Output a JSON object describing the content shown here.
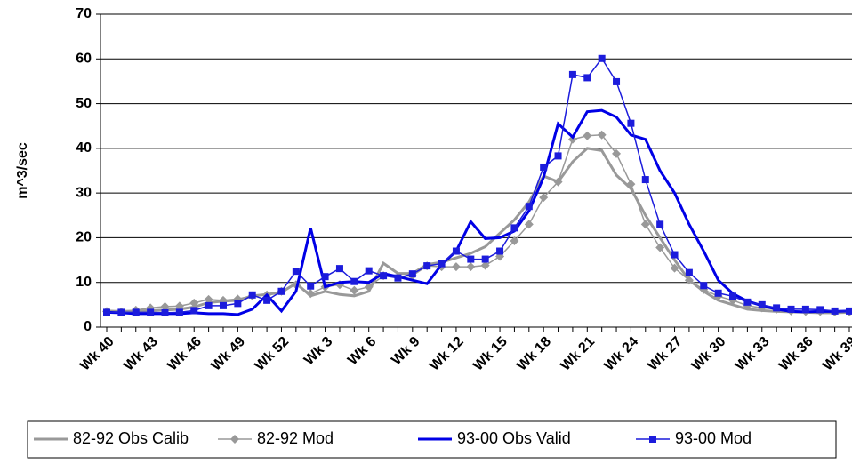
{
  "chart_data": {
    "type": "line",
    "ylabel": "m^3/sec",
    "categories": [
      "Wk 40",
      null,
      null,
      "Wk 43",
      null,
      null,
      "Wk 46",
      null,
      null,
      "Wk 49",
      null,
      null,
      "Wk 52",
      null,
      null,
      "Wk 3",
      null,
      null,
      "Wk 6",
      null,
      null,
      "Wk 9",
      null,
      null,
      "Wk 12",
      null,
      null,
      "Wk 15",
      null,
      null,
      "Wk 18",
      null,
      null,
      "Wk 21",
      null,
      null,
      "Wk 24",
      null,
      null,
      "Wk 27",
      null,
      null,
      "Wk 30",
      null,
      null,
      "Wk 33",
      null,
      null,
      "Wk 36",
      null,
      null,
      "Wk 39"
    ],
    "ylim": [
      0,
      70
    ],
    "yticks": [
      0,
      10,
      20,
      30,
      40,
      50,
      60,
      70
    ],
    "grid": true,
    "series": [
      {
        "name": "82-92 Obs Calib",
        "color": "#999999",
        "marker": "none",
        "values": [
          3.6,
          3.5,
          3.6,
          3.7,
          3.8,
          4.0,
          4.5,
          5.5,
          5.8,
          6.0,
          7.0,
          7.3,
          7.8,
          9.8,
          7.0,
          8.0,
          7.3,
          7.0,
          8.0,
          14.3,
          12.0,
          12.0,
          14.0,
          14.5,
          15.5,
          16.5,
          18.0,
          21.0,
          24.0,
          28.0,
          33.8,
          32.5,
          37.0,
          40.0,
          39.5,
          34.0,
          31.0,
          25.0,
          20.0,
          15.0,
          10.5,
          8.0,
          6.0,
          5.0,
          4.0,
          3.7,
          3.5,
          3.4,
          3.3,
          3.2,
          3.2,
          3.3
        ]
      },
      {
        "name": "82-92 Mod",
        "color": "#999999",
        "marker": "diamond",
        "values": [
          3.5,
          3.4,
          3.8,
          4.3,
          4.6,
          4.7,
          5.4,
          6.2,
          6.0,
          6.3,
          7.0,
          7.2,
          8.0,
          9.5,
          7.5,
          9.0,
          9.5,
          8.2,
          9.0,
          11.5,
          11.2,
          11.5,
          13.7,
          13.5,
          13.5,
          13.5,
          13.8,
          15.8,
          19.3,
          23.0,
          29.0,
          32.5,
          42.0,
          42.8,
          43.0,
          38.8,
          32.0,
          23.0,
          17.8,
          13.2,
          10.5,
          8.4,
          6.9,
          6.0,
          4.8,
          4.3,
          4.0,
          3.6,
          3.5,
          3.5,
          3.4,
          3.4
        ]
      },
      {
        "name": "93-00 Obs Valid",
        "color": "#0000e6",
        "marker": "none",
        "values": [
          3.3,
          3.2,
          3.0,
          3.0,
          3.0,
          3.0,
          3.2,
          3.0,
          3.0,
          2.8,
          4.0,
          7.2,
          3.6,
          8.0,
          22.2,
          9.0,
          10.0,
          10.2,
          10.0,
          12.0,
          11.3,
          10.5,
          9.7,
          14.0,
          17.0,
          23.6,
          19.8,
          20.0,
          21.5,
          26.0,
          33.5,
          45.5,
          42.5,
          48.2,
          48.5,
          47.0,
          43.0,
          42.0,
          35.0,
          30.0,
          23.0,
          17.0,
          10.5,
          7.5,
          5.8,
          4.8,
          4.0,
          3.5,
          3.4,
          3.5,
          3.5,
          3.6
        ]
      },
      {
        "name": "93-00 Mod",
        "color": "#1c1cdc",
        "marker": "square",
        "values": [
          3.3,
          3.3,
          3.3,
          3.3,
          3.2,
          3.3,
          3.7,
          4.8,
          4.8,
          5.3,
          7.2,
          6.0,
          8.0,
          12.5,
          9.2,
          11.3,
          13.1,
          10.2,
          12.6,
          11.5,
          11.0,
          11.9,
          13.7,
          14.2,
          17.0,
          15.2,
          15.2,
          17.0,
          22.2,
          27.0,
          35.8,
          38.3,
          56.5,
          55.8,
          60.1,
          54.9,
          45.6,
          33.0,
          23.0,
          16.2,
          12.2,
          9.3,
          7.6,
          6.9,
          5.6,
          5.0,
          4.3,
          4.0,
          4.0,
          3.9,
          3.6,
          3.6
        ]
      }
    ]
  }
}
